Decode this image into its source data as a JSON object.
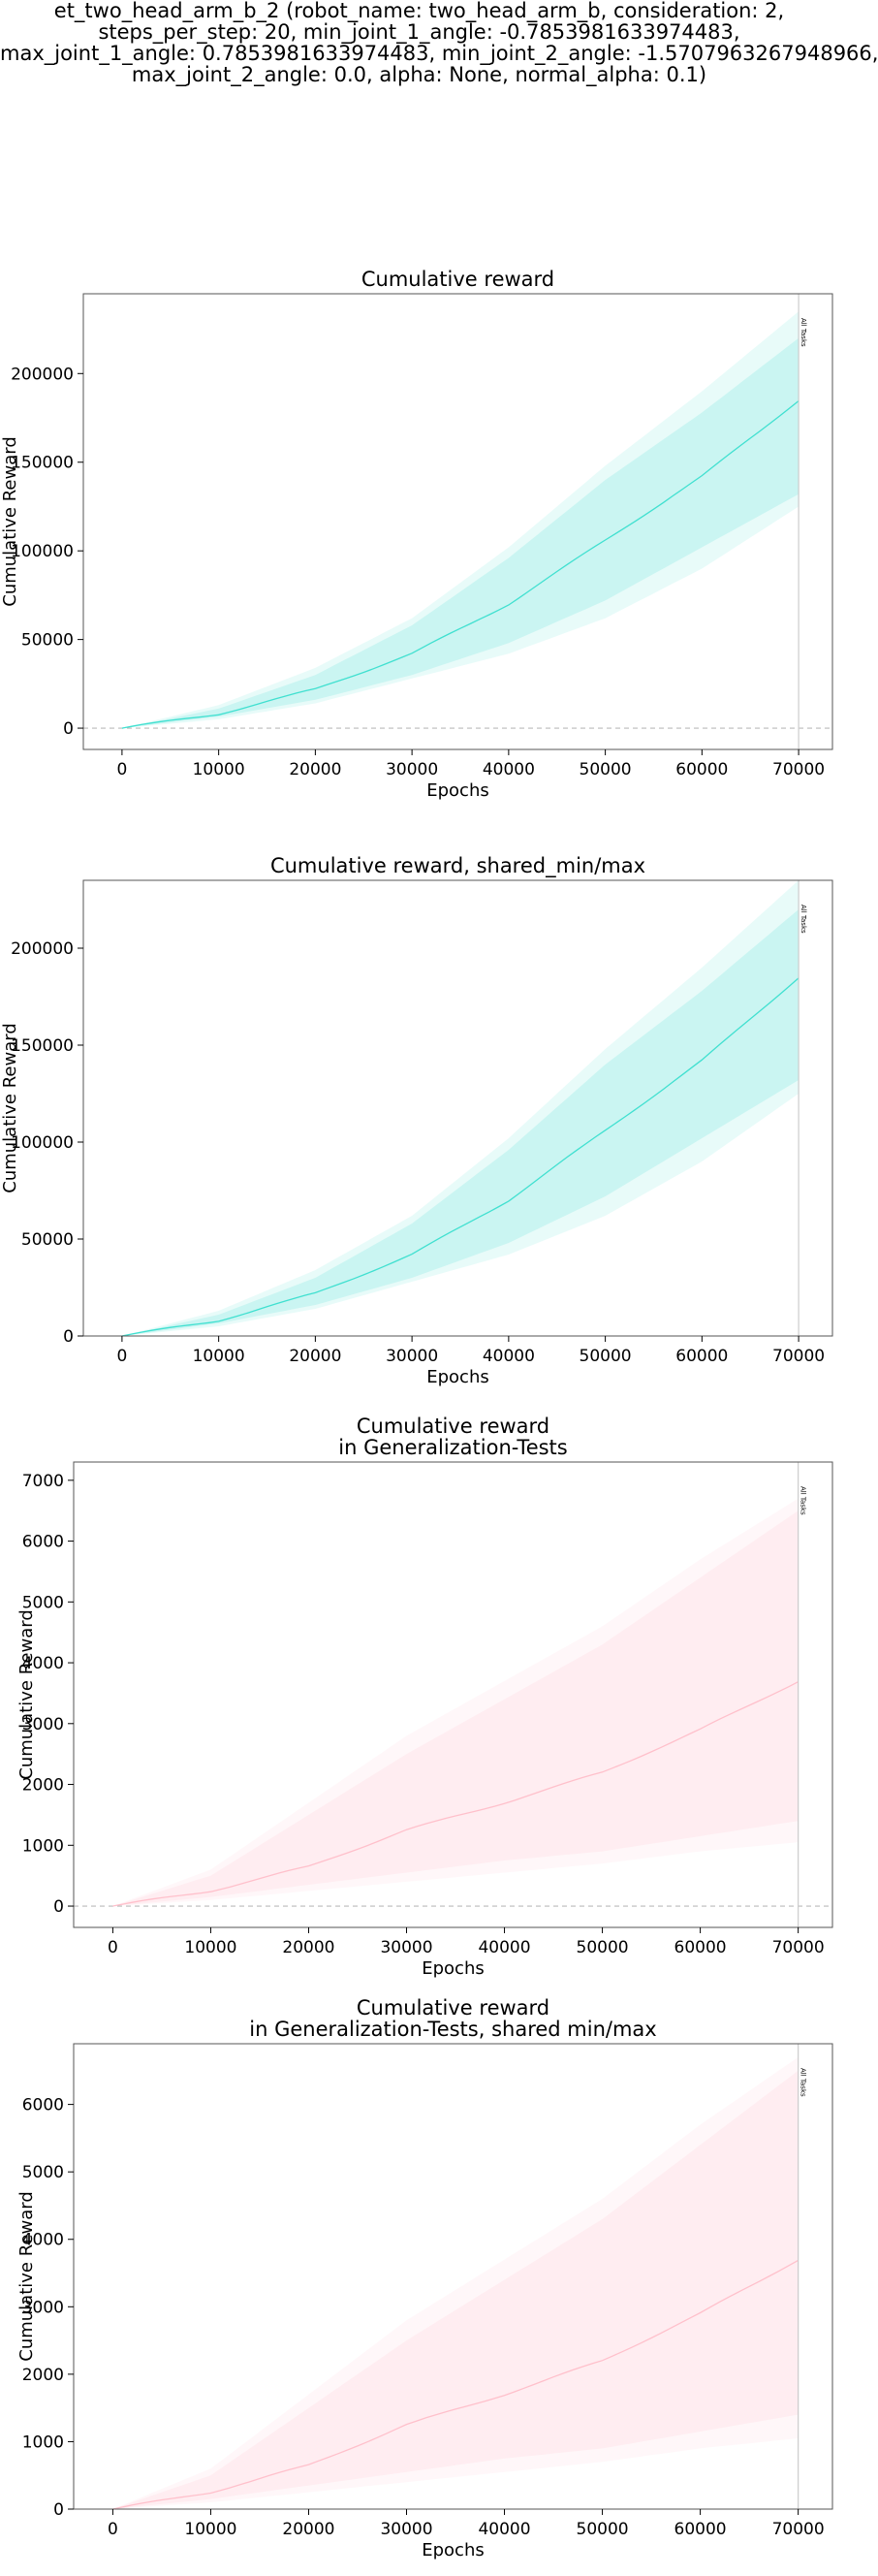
{
  "suptitle_lines": [
    "et_two_head_arm_b_2 (robot_name: two_head_arm_b, consideration: 2,",
    "steps_per_step: 20, min_joint_1_angle: -0.7853981633974483,",
    "max_joint_1_angle: 0.7853981633974483, min_joint_2_angle: -1.5707963267948966,",
    "max_joint_2_angle: 0.0, alpha: None, normal_alpha: 0.1)"
  ],
  "chart_data": [
    {
      "type": "line",
      "title": [
        "Cumulative reward"
      ],
      "xlabel": "Epochs",
      "ylabel": "Cumulative Reward",
      "xlim": [
        -4000,
        73500
      ],
      "ylim": [
        -12000,
        245000
      ],
      "xticks": [
        0,
        10000,
        20000,
        30000,
        40000,
        50000,
        60000,
        70000
      ],
      "yticks": [
        0,
        50000,
        100000,
        150000,
        200000
      ],
      "zero_line": true,
      "vline": {
        "x": 70000,
        "label": "All Tasks"
      },
      "color": "#40e0d0",
      "series": [
        {
          "x": [
            0,
            10000,
            20000,
            30000,
            40000,
            50000,
            60000,
            70000
          ],
          "mean": [
            0,
            8000,
            22000,
            42000,
            70000,
            106000,
            142000,
            185000
          ],
          "inner_low": [
            0,
            6500,
            16000,
            30000,
            48000,
            72000,
            102000,
            132000
          ],
          "inner_high": [
            0,
            11000,
            30000,
            58000,
            96000,
            140000,
            178000,
            220000
          ],
          "outer_low": [
            0,
            5000,
            14000,
            28000,
            42000,
            62000,
            90000,
            125000
          ],
          "outer_high": [
            0,
            13000,
            34000,
            62000,
            102000,
            148000,
            190000,
            235000
          ]
        }
      ]
    },
    {
      "type": "line",
      "title": [
        "Cumulative reward, shared_min/max"
      ],
      "xlabel": "Epochs",
      "ylabel": "Cumulative Reward",
      "xlim": [
        -4000,
        73500
      ],
      "ylim": [
        0,
        235000
      ],
      "xticks": [
        0,
        10000,
        20000,
        30000,
        40000,
        50000,
        60000,
        70000
      ],
      "yticks": [
        0,
        50000,
        100000,
        150000,
        200000
      ],
      "zero_line": false,
      "vline": {
        "x": 70000,
        "label": "All Tasks"
      },
      "color": "#40e0d0",
      "series": [
        {
          "x": [
            0,
            10000,
            20000,
            30000,
            40000,
            50000,
            60000,
            70000
          ],
          "mean": [
            0,
            8000,
            22000,
            42000,
            70000,
            106000,
            142000,
            185000
          ],
          "inner_low": [
            0,
            6500,
            16000,
            30000,
            48000,
            72000,
            102000,
            132000
          ],
          "inner_high": [
            0,
            11000,
            30000,
            58000,
            96000,
            140000,
            178000,
            220000
          ],
          "outer_low": [
            0,
            5000,
            14000,
            28000,
            42000,
            62000,
            90000,
            125000
          ],
          "outer_high": [
            0,
            13000,
            34000,
            62000,
            102000,
            148000,
            190000,
            235000
          ]
        }
      ]
    },
    {
      "type": "line",
      "title": [
        "Cumulative reward",
        "in Generalization-Tests"
      ],
      "xlabel": "Epochs",
      "ylabel": "Cumulative Reward",
      "xlim": [
        -4000,
        73500
      ],
      "ylim": [
        -350,
        7300
      ],
      "xticks": [
        0,
        10000,
        20000,
        30000,
        40000,
        50000,
        60000,
        70000
      ],
      "yticks": [
        0,
        1000,
        2000,
        3000,
        4000,
        5000,
        6000,
        7000
      ],
      "zero_line": true,
      "vline": {
        "x": 70000,
        "label": "All Tasks"
      },
      "color": "#ffc0cb",
      "series": [
        {
          "x": [
            0,
            10000,
            20000,
            30000,
            40000,
            50000,
            60000,
            70000
          ],
          "mean": [
            0,
            250,
            650,
            1250,
            1700,
            2200,
            2900,
            3700
          ],
          "inner_low": [
            0,
            150,
            350,
            550,
            750,
            900,
            1150,
            1400
          ],
          "inner_high": [
            0,
            500,
            1500,
            2500,
            3400,
            4300,
            5400,
            6500
          ],
          "outer_low": [
            0,
            100,
            250,
            400,
            550,
            700,
            900,
            1050
          ],
          "outer_high": [
            0,
            600,
            1700,
            2800,
            3700,
            4600,
            5700,
            6700
          ]
        }
      ]
    },
    {
      "type": "line",
      "title": [
        "Cumulative reward",
        "in Generalization-Tests, shared min/max"
      ],
      "xlabel": "Epochs",
      "ylabel": "Cumulative Reward",
      "xlim": [
        -4000,
        73500
      ],
      "ylim": [
        0,
        6900
      ],
      "xticks": [
        0,
        10000,
        20000,
        30000,
        40000,
        50000,
        60000,
        70000
      ],
      "yticks": [
        0,
        1000,
        2000,
        3000,
        4000,
        5000,
        6000
      ],
      "zero_line": false,
      "vline": {
        "x": 70000,
        "label": "All Tasks"
      },
      "color": "#ffc0cb",
      "series": [
        {
          "x": [
            0,
            10000,
            20000,
            30000,
            40000,
            50000,
            60000,
            70000
          ],
          "mean": [
            0,
            250,
            650,
            1250,
            1700,
            2200,
            2900,
            3700
          ],
          "inner_low": [
            0,
            150,
            350,
            550,
            750,
            900,
            1150,
            1400
          ],
          "inner_high": [
            0,
            500,
            1500,
            2500,
            3400,
            4300,
            5400,
            6500
          ],
          "outer_low": [
            0,
            100,
            250,
            400,
            550,
            700,
            900,
            1050
          ],
          "outer_high": [
            0,
            600,
            1700,
            2800,
            3700,
            4600,
            5700,
            6700
          ]
        }
      ]
    }
  ]
}
